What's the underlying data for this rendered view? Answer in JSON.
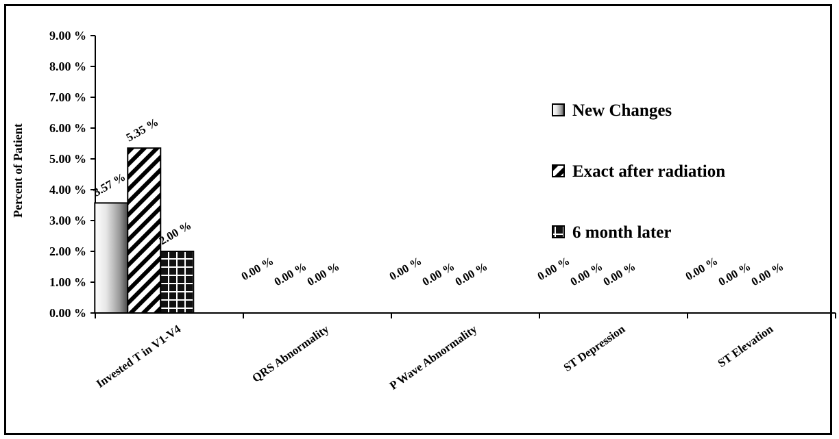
{
  "chart_data": {
    "type": "bar",
    "title": "",
    "xlabel": "",
    "ylabel": "Percent of Patient",
    "ylim": [
      0,
      9
    ],
    "yticks": [
      0,
      1,
      2,
      3,
      4,
      5,
      6,
      7,
      8,
      9
    ],
    "ytick_labels": [
      "0.00 %",
      "1.00 %",
      "2.00 %",
      "3.00 %",
      "4.00 %",
      "5.00 %",
      "6.00 %",
      "7.00 %",
      "8.00 %",
      "9.00 %"
    ],
    "categories": [
      "Invested T in V1-V4",
      "QRS Abnormality",
      "P Wave Abnormality",
      "ST Depression",
      "ST Elevation"
    ],
    "series": [
      {
        "name": "New Changes",
        "values": [
          3.57,
          0,
          0,
          0,
          0
        ],
        "labels": [
          "3.57 %",
          "0.00 %",
          "0.00 %",
          "0.00 %",
          "0.00 %"
        ]
      },
      {
        "name": "Exact after radiation",
        "values": [
          5.35,
          0,
          0,
          0,
          0
        ],
        "labels": [
          "5.35 %",
          "0.00 %",
          "0.00 %",
          "0.00 %",
          "0.00 %"
        ]
      },
      {
        "name": "6 month later",
        "values": [
          2.0,
          0,
          0,
          0,
          0
        ],
        "labels": [
          "2.00 %",
          "0.00 %",
          "0.00 %",
          "0.00 %",
          "0.00 %"
        ]
      }
    ],
    "grid": false,
    "legend_position": "right"
  }
}
